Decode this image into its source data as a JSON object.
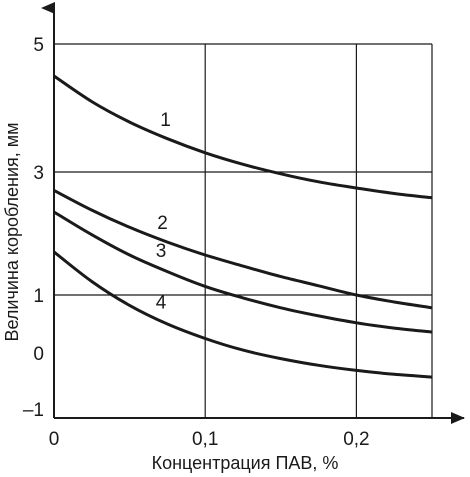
{
  "chart_data": {
    "type": "line",
    "title": "",
    "xlabel": "Концентрация ПАВ, %",
    "ylabel": "Величина коробления, мм",
    "xlim": [
      0,
      0.25
    ],
    "ylim": [
      -1,
      5
    ],
    "grid": true,
    "x_ticks": [
      {
        "value": 0,
        "label": "0"
      },
      {
        "value": 0.1,
        "label": "0,1"
      },
      {
        "value": 0.2,
        "label": "0,2"
      }
    ],
    "y_ticks": [
      {
        "value": 5,
        "label": "5"
      },
      {
        "value": 3,
        "label": "3"
      },
      {
        "value": 1,
        "label": "1"
      },
      {
        "value": 0,
        "label": "0"
      },
      {
        "value": -1,
        "label": "–1"
      }
    ],
    "y_grid": [
      1,
      3,
      5
    ],
    "x": [
      0,
      0.025,
      0.05,
      0.075,
      0.1,
      0.125,
      0.15,
      0.175,
      0.2,
      0.225,
      0.25
    ],
    "series": [
      {
        "name": "1",
        "label_at": 0.065,
        "values": [
          4.5,
          4.1,
          3.78,
          3.52,
          3.3,
          3.12,
          2.97,
          2.84,
          2.74,
          2.65,
          2.58
        ]
      },
      {
        "name": "2",
        "label_at": 0.063,
        "values": [
          2.7,
          2.38,
          2.1,
          1.86,
          1.65,
          1.47,
          1.3,
          1.15,
          1.0,
          0.88,
          0.78
        ]
      },
      {
        "name": "3",
        "label_at": 0.062,
        "values": [
          2.35,
          1.98,
          1.65,
          1.38,
          1.14,
          0.95,
          0.78,
          0.64,
          0.52,
          0.43,
          0.36
        ]
      },
      {
        "name": "4",
        "label_at": 0.062,
        "values": [
          1.7,
          1.22,
          0.82,
          0.5,
          0.25,
          0.05,
          -0.1,
          -0.22,
          -0.31,
          -0.38,
          -0.43
        ]
      }
    ]
  }
}
